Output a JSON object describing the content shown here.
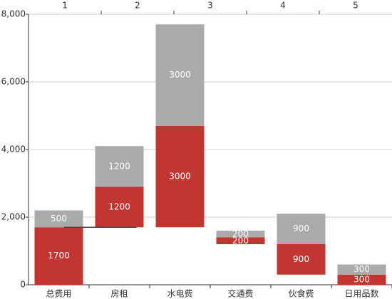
{
  "chart_data": {
    "type": "bar",
    "stacked": true,
    "categories": [
      "总费用",
      "房租",
      "水电费",
      "交通费",
      "伙食费",
      "日用品数"
    ],
    "x2_categories": [
      "1",
      "2",
      "3",
      "4",
      "5"
    ],
    "series": [
      {
        "color": "none",
        "values": [
          0,
          1700,
          1700,
          1200,
          300,
          0
        ],
        "show_labels": false
      },
      {
        "color": "#c23531",
        "values": [
          1700,
          1200,
          3000,
          200,
          900,
          300
        ],
        "show_labels": true
      },
      {
        "color": "#aaaaaa",
        "values": [
          500,
          1200,
          3000,
          200,
          900,
          300
        ],
        "show_labels": true
      }
    ],
    "ylim": [
      0,
      8000
    ],
    "yticks": [
      0,
      {
        "value": 2000,
        "label": "2,000"
      },
      {
        "value": 4000,
        "label": "4,000"
      },
      {
        "value": 6000,
        "label": "6,000"
      },
      {
        "value": 8000,
        "label": "8,000"
      }
    ],
    "grid": true
  }
}
